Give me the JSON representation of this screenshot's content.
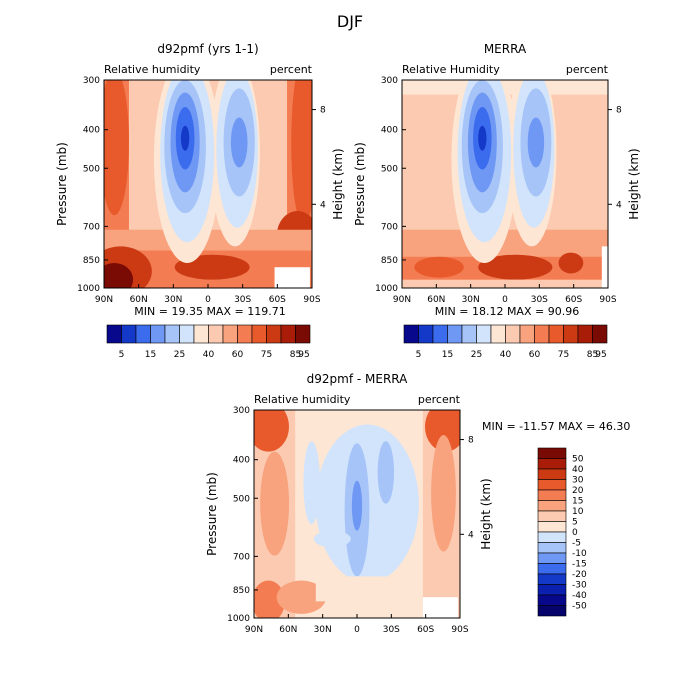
{
  "figure_title": "DJF",
  "chart_data": [
    {
      "type": "heatmap",
      "title": "d92pmf (yrs 1-1)",
      "subtitle_left": "Relative humidity",
      "subtitle_right": "percent",
      "xlabel": "",
      "ylabel": "Pressure (mb)",
      "ylabel_right": "Height (km)",
      "x_ticks": [
        "90N",
        "60N",
        "30N",
        "0",
        "30S",
        "60S",
        "90S"
      ],
      "y_ticks": [
        "300",
        "400",
        "500",
        "700",
        "850",
        "1000"
      ],
      "y_right_ticks": [
        "8",
        "4"
      ],
      "stats": "MIN =  19.35   MAX = 119.71",
      "colorbar": {
        "levels": [
          "5",
          "15",
          "25",
          "40",
          "60",
          "75",
          "85",
          "95"
        ],
        "colors": [
          "#08088c",
          "#1438c8",
          "#3c6cee",
          "#6e98f4",
          "#a6c4f8",
          "#d2e4fb",
          "#fde6d4",
          "#fbcab0",
          "#f8a27e",
          "#f47c52",
          "#e85a2c",
          "#cc3a14",
          "#a81c08",
          "#7a0a04"
        ]
      }
    },
    {
      "type": "heatmap",
      "title": "MERRA",
      "subtitle_left": "Relative Humidity",
      "subtitle_right": "percent",
      "xlabel": "",
      "ylabel": "Pressure (mb)",
      "ylabel_right": "Height (km)",
      "x_ticks": [
        "90N",
        "60N",
        "30N",
        "0",
        "30S",
        "60S",
        "90S"
      ],
      "y_ticks": [
        "300",
        "400",
        "500",
        "700",
        "850",
        "1000"
      ],
      "y_right_ticks": [
        "8",
        "4"
      ],
      "stats": "MIN =  18.12   MAX =  90.96",
      "colorbar": {
        "levels": [
          "5",
          "15",
          "25",
          "40",
          "60",
          "75",
          "85",
          "95"
        ],
        "colors": [
          "#08088c",
          "#1438c8",
          "#3c6cee",
          "#6e98f4",
          "#a6c4f8",
          "#d2e4fb",
          "#fde6d4",
          "#fbcab0",
          "#f8a27e",
          "#f47c52",
          "#e85a2c",
          "#cc3a14",
          "#a81c08",
          "#7a0a04"
        ]
      }
    },
    {
      "type": "heatmap",
      "title": "d92pmf - MERRA",
      "subtitle_left": "Relative humidity",
      "subtitle_right": "percent",
      "xlabel": "",
      "ylabel": "Pressure (mb)",
      "ylabel_right": "Height (km)",
      "x_ticks": [
        "90N",
        "60N",
        "30N",
        "0",
        "30S",
        "60S",
        "90S"
      ],
      "y_ticks": [
        "300",
        "400",
        "500",
        "700",
        "850",
        "1000"
      ],
      "y_right_ticks": [
        "8",
        "4"
      ],
      "stats": "MIN = -11.57   MAX =  46.30",
      "colorbar": {
        "levels": [
          "50",
          "40",
          "30",
          "20",
          "15",
          "10",
          "5",
          "0",
          "-5",
          "-10",
          "-15",
          "-20",
          "-30",
          "-40",
          "-50"
        ],
        "colors": [
          "#7a0a04",
          "#a81c08",
          "#cc3a14",
          "#e85a2c",
          "#f47c52",
          "#f8a27e",
          "#fbcab0",
          "#fde6d4",
          "#d2e4fb",
          "#a6c4f8",
          "#6e98f4",
          "#3c6cee",
          "#1438c8",
          "#0c20b0",
          "#08088c",
          "#04046a"
        ]
      }
    }
  ]
}
